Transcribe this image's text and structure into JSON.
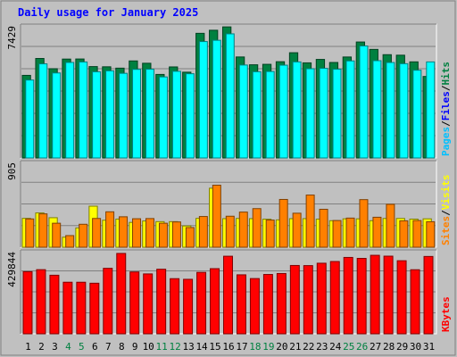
{
  "chart_data": [
    {
      "type": "bar",
      "title": "Daily usage for January 2025",
      "ymax_label": "7429",
      "ylim": [
        0,
        7429
      ],
      "categories": [
        "1",
        "2",
        "3",
        "4",
        "5",
        "6",
        "7",
        "8",
        "9",
        "10",
        "11",
        "12",
        "13",
        "14",
        "15",
        "16",
        "17",
        "18",
        "19",
        "20",
        "21",
        "22",
        "23",
        "24",
        "25",
        "26",
        "27",
        "28",
        "29",
        "30",
        "31"
      ],
      "legend": [
        "Pages",
        "/",
        "Files",
        "/",
        "Hits"
      ],
      "series": [
        {
          "name": "Hits",
          "color": "#008040",
          "values": [
            4646,
            5596,
            5020,
            5562,
            5567,
            5140,
            5128,
            5052,
            5458,
            5327,
            4698,
            5121,
            4824,
            7010,
            7183,
            7372,
            5680,
            5241,
            5267,
            5414,
            5919,
            5349,
            5543,
            5370,
            5679,
            6522,
            6106,
            5809,
            5780,
            5406,
            4584
          ]
        },
        {
          "name": "Files",
          "color": "#00ffff",
          "values": [
            4384,
            5294,
            4781,
            5372,
            5399,
            4848,
            4900,
            4760,
            4983,
            4994,
            4558,
            4875,
            4737,
            6547,
            6618,
            6980,
            5227,
            4850,
            4863,
            5218,
            5403,
            5020,
            5040,
            4993,
            5458,
            6300,
            5471,
            5368,
            5302,
            4935,
            5402
          ]
        }
      ]
    },
    {
      "type": "bar",
      "ymax_label": "905",
      "ylim": [
        0,
        905
      ],
      "legend": [
        "Sites",
        "/",
        "Visits"
      ],
      "series": [
        {
          "name": "Visits",
          "color": "#ffff00",
          "values": [
            308,
            366,
            315,
            107,
            206,
            438,
            288,
            300,
            265,
            280,
            273,
            273,
            227,
            308,
            630,
            305,
            307,
            305,
            299,
            292,
            305,
            305,
            300,
            283,
            303,
            303,
            283,
            307,
            307,
            300,
            303
          ]
        },
        {
          "name": "Sites",
          "color": "#ff8000",
          "values": [
            302,
            356,
            256,
            124,
            245,
            307,
            378,
            325,
            304,
            306,
            256,
            270,
            210,
            328,
            662,
            331,
            375,
            412,
            290,
            510,
            363,
            557,
            405,
            285,
            311,
            508,
            320,
            458,
            282,
            285,
            272
          ]
        }
      ]
    },
    {
      "type": "bar",
      "ymax_label": "429844",
      "ylim": [
        0,
        429844
      ],
      "legend": [
        "KBytes"
      ],
      "series": [
        {
          "name": "KBytes",
          "color": "#ff0000",
          "values": [
            325125,
            335710,
            306582,
            269950,
            269915,
            264720,
            342710,
            420710,
            323760,
            313490,
            337900,
            288610,
            285265,
            321490,
            341035,
            406065,
            308685,
            289130,
            310525,
            315575,
            357655,
            356940,
            369450,
            378405,
            399755,
            394780,
            410885,
            406410,
            382460,
            335345,
            404815
          ]
        }
      ]
    }
  ],
  "colors": {
    "background": "#c0c0c0",
    "plot_bg": "#c0c0c0",
    "title": "#0000ff",
    "weekend_label": "#008040",
    "weekday_label": "#000000"
  },
  "weekend_days": [
    4,
    5,
    11,
    12,
    18,
    19,
    25,
    26
  ]
}
